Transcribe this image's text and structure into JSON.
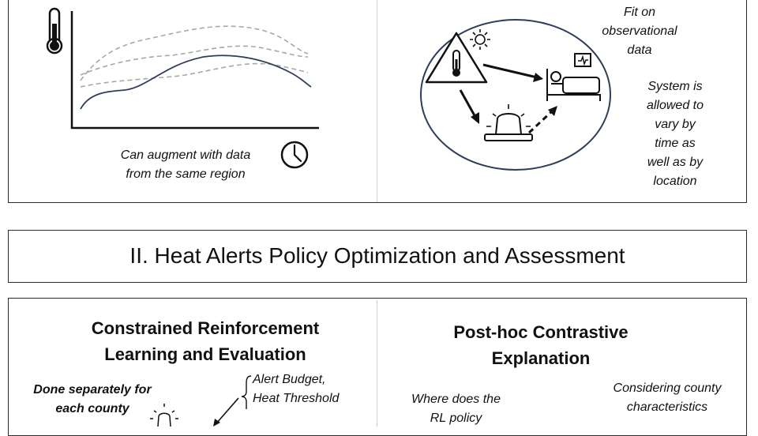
{
  "top_left": {
    "augment_note": "Can augment with data\nfrom the same region"
  },
  "top_right": {
    "fit_note": "Fit on\nobservational\ndata",
    "system_note": "System is\nallowed to\nvary by\ntime as\nwell as by\nlocation"
  },
  "section_banner": {
    "title": "II. Heat Alerts Policy Optimization and Assessment"
  },
  "bottom_left": {
    "heading": "Constrained  Reinforcement\nLearning and Evaluation",
    "done_separately": "Done separately for\neach county",
    "alert_budget": "Alert Budget,\nHeat Threshold"
  },
  "bottom_right": {
    "heading": "Post-hoc  Contrastive\nExplanation",
    "where_note": "Where does the\nRL policy",
    "considering_note": "Considering county\ncharacteristics"
  },
  "icons": [
    "thermometer-icon",
    "clock-icon",
    "warning-icon",
    "sun-icon",
    "hospital-bed-icon",
    "siren-icon"
  ],
  "colors": {
    "main_curve": "#2f3d5c",
    "dashed_curves": "#a8a8a8",
    "border": "#2b2b2b"
  }
}
